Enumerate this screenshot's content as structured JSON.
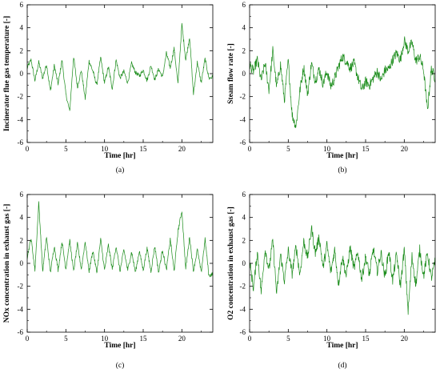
{
  "chart_data": [
    {
      "type": "line",
      "caption": "(a)",
      "xlabel": "Time [hr]",
      "ylabel": "Incinerator flue gas temperature [-]",
      "xlim": [
        0,
        24
      ],
      "ylim": [
        -6,
        6
      ],
      "xticks": [
        0,
        5,
        10,
        15,
        20
      ],
      "yticks": [
        -6,
        -4,
        -2,
        0,
        2,
        4,
        6
      ],
      "color": "#1a8c1a",
      "grid": false,
      "series": [
        {
          "x": [
            0,
            0.5,
            1,
            1.5,
            2,
            2.5,
            3,
            3.5,
            4,
            4.5,
            5,
            5.5,
            6,
            6.5,
            7,
            7.5,
            8,
            8.5,
            9,
            9.5,
            10,
            10.5,
            11,
            11.5,
            12,
            12.5,
            13,
            13.5,
            14,
            14.5,
            15,
            15.5,
            16,
            16.5,
            17,
            17.5,
            18,
            18.5,
            19,
            19.5,
            20,
            20.5,
            21,
            21.5,
            22,
            22.5,
            23,
            23.5,
            24
          ],
          "y": [
            0.5,
            1.2,
            -0.6,
            1.0,
            -0.4,
            0.8,
            -1.5,
            0.7,
            -0.9,
            1.2,
            -1.8,
            -3.3,
            1.5,
            -1.2,
            0.3,
            -2.2,
            1.1,
            0.2,
            -1.0,
            1.4,
            -0.8,
            0.6,
            -1.3,
            1.2,
            -0.4,
            0.2,
            -0.8,
            0.9,
            0.1,
            -0.2,
            0.3,
            -0.6,
            0.7,
            -0.5,
            0.4,
            -0.3,
            1.8,
            0.5,
            2.2,
            -0.9,
            4.3,
            1.2,
            3.2,
            -1.8,
            1.0,
            -0.8,
            1.3,
            -0.4,
            -0.3
          ]
        }
      ]
    },
    {
      "type": "line",
      "caption": "(b)",
      "xlabel": "Time [hr]",
      "ylabel": "Steam flow rate [-]",
      "xlim": [
        0,
        24
      ],
      "ylim": [
        -6,
        6
      ],
      "xticks": [
        0,
        5,
        10,
        15,
        20
      ],
      "yticks": [
        -6,
        -4,
        -2,
        0,
        2,
        4,
        6
      ],
      "color": "#1a8c1a",
      "grid": false,
      "series": [
        {
          "x": [
            0,
            0.5,
            1,
            1.5,
            2,
            2.5,
            3,
            3.5,
            4,
            4.5,
            5,
            5.5,
            6,
            6.5,
            7,
            7.5,
            8,
            8.5,
            9,
            9.5,
            10,
            10.5,
            11,
            11.5,
            12,
            12.5,
            13,
            13.5,
            14,
            14.5,
            15,
            15.5,
            16,
            16.5,
            17,
            17.5,
            18,
            18.5,
            19,
            19.5,
            20,
            20.5,
            21,
            21.5,
            22,
            22.5,
            23,
            23.5,
            24
          ],
          "y": [
            0.8,
            0.2,
            1.2,
            -0.6,
            0.9,
            -1.4,
            2.0,
            -1.2,
            0.8,
            -2.3,
            1.1,
            -3.6,
            -4.6,
            -1.5,
            0.6,
            -1.8,
            0.9,
            -0.6,
            0.4,
            -0.9,
            0.2,
            -1.1,
            -0.4,
            0.6,
            1.5,
            1.1,
            0.5,
            0.9,
            -0.3,
            -1.4,
            -0.7,
            -1.0,
            -0.4,
            0.2,
            -0.6,
            0.3,
            0.4,
            1.2,
            1.8,
            1.2,
            2.9,
            2.0,
            2.7,
            1.1,
            1.5,
            0.3,
            -3.2,
            0.4,
            -0.4
          ]
        }
      ]
    },
    {
      "type": "line",
      "caption": "(c)",
      "xlabel": "Time [hr]",
      "ylabel": "NOx concentration in exhaust gas [-]",
      "xlim": [
        0,
        24
      ],
      "ylim": [
        -6,
        6
      ],
      "xticks": [
        0,
        5,
        10,
        15,
        20
      ],
      "yticks": [
        -6,
        -4,
        -2,
        0,
        2,
        4,
        6
      ],
      "color": "#1a8c1a",
      "grid": false,
      "series": [
        {
          "x": [
            0,
            0.5,
            1,
            1.5,
            2,
            2.5,
            3,
            3.5,
            4,
            4.5,
            5,
            5.5,
            6,
            6.5,
            7,
            7.5,
            8,
            8.5,
            9,
            9.5,
            10,
            10.5,
            11,
            11.5,
            12,
            12.5,
            13,
            13.5,
            14,
            14.5,
            15,
            15.5,
            16,
            16.5,
            17,
            17.5,
            18,
            18.5,
            19,
            19.5,
            20,
            20.5,
            21,
            21.5,
            22,
            22.5,
            23,
            23.5,
            24
          ],
          "y": [
            0.5,
            2.2,
            -0.6,
            5.3,
            -0.7,
            2.3,
            -0.8,
            1.5,
            -0.6,
            1.9,
            -0.5,
            2.0,
            -0.7,
            1.7,
            -0.5,
            1.9,
            -0.7,
            1.1,
            -0.8,
            2.1,
            -0.6,
            1.6,
            -0.5,
            1.5,
            -0.7,
            1.2,
            -0.6,
            1.0,
            -0.8,
            1.1,
            -0.6,
            1.3,
            -0.7,
            1.5,
            -0.8,
            1.2,
            -0.6,
            2.1,
            -0.7,
            2.8,
            4.6,
            -0.5,
            2.3,
            -0.7,
            1.2,
            -0.8,
            2.1,
            -1.1,
            -0.9
          ]
        }
      ]
    },
    {
      "type": "line",
      "caption": "(d)",
      "xlabel": "Time [hr]",
      "ylabel": "O2 concentration in exhaust gas [-]",
      "xlim": [
        0,
        24
      ],
      "ylim": [
        -6,
        6
      ],
      "xticks": [
        0,
        5,
        10,
        15,
        20
      ],
      "yticks": [
        -6,
        -4,
        -2,
        0,
        2,
        4,
        6
      ],
      "color": "#1a8c1a",
      "grid": false,
      "series": [
        {
          "x": [
            0,
            0.5,
            1,
            1.5,
            2,
            2.5,
            3,
            3.5,
            4,
            4.5,
            5,
            5.5,
            6,
            6.5,
            7,
            7.5,
            8,
            8.5,
            9,
            9.5,
            10,
            10.5,
            11,
            11.5,
            12,
            12.5,
            13,
            13.5,
            14,
            14.5,
            15,
            15.5,
            16,
            16.5,
            17,
            17.5,
            18,
            18.5,
            19,
            19.5,
            20,
            20.5,
            21,
            21.5,
            22,
            22.5,
            23,
            23.5,
            24
          ],
          "y": [
            0.2,
            -2.2,
            1.0,
            -2.5,
            1.3,
            -0.6,
            2.0,
            -2.7,
            0.8,
            -1.5,
            1.1,
            -0.9,
            1.5,
            -1.0,
            1.9,
            0.5,
            3.1,
            0.9,
            2.3,
            -0.4,
            1.6,
            -0.8,
            1.2,
            -1.8,
            0.6,
            -1.1,
            1.4,
            -0.5,
            1.0,
            -1.4,
            0.6,
            -1.0,
            1.3,
            -0.7,
            0.9,
            -1.2,
            1.1,
            -1.5,
            0.8,
            -2.0,
            1.2,
            -4.2,
            0.6,
            -1.9,
            1.2,
            -1.1,
            0.9,
            -1.3,
            0.2
          ]
        }
      ]
    }
  ]
}
